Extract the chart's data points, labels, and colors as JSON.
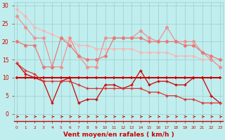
{
  "x": [
    0,
    1,
    2,
    3,
    4,
    5,
    6,
    7,
    8,
    9,
    10,
    11,
    12,
    13,
    14,
    15,
    16,
    17,
    18,
    19,
    20,
    21,
    22,
    23
  ],
  "line_lightest": [
    29,
    27,
    24,
    23,
    22,
    21,
    20,
    19,
    19,
    18,
    18,
    18,
    18,
    18,
    17,
    17,
    17,
    17,
    16,
    16,
    16,
    15,
    15,
    13
  ],
  "line_light": [
    27,
    24,
    21,
    21,
    13,
    13,
    21,
    16,
    13,
    13,
    21,
    21,
    21,
    21,
    23,
    21,
    20,
    24,
    20,
    20,
    20,
    17,
    15,
    13
  ],
  "line_med": [
    20,
    19,
    19,
    13,
    13,
    21,
    19,
    16,
    15,
    15,
    16,
    21,
    21,
    21,
    21,
    20,
    20,
    20,
    20,
    19,
    19,
    17,
    16,
    15
  ],
  "line_flat": [
    10,
    10,
    10,
    10,
    10,
    10,
    10,
    10,
    10,
    10,
    10,
    10,
    10,
    10,
    10,
    10,
    10,
    10,
    10,
    10,
    10,
    10,
    10,
    10
  ],
  "line_jagged": [
    14,
    11,
    10,
    9,
    3,
    9,
    10,
    3,
    4,
    4,
    8,
    8,
    7,
    8,
    12,
    8,
    9,
    9,
    8,
    8,
    10,
    10,
    5,
    3
  ],
  "line_decline": [
    14,
    12,
    11,
    9,
    9,
    9,
    9,
    8,
    7,
    7,
    7,
    7,
    7,
    7,
    7,
    6,
    6,
    5,
    5,
    4,
    4,
    3,
    3,
    3
  ],
  "color_lightest": "#f5b8b8",
  "color_light": "#f09090",
  "color_med": "#e87878",
  "color_flat": "#cc0000",
  "color_jagged": "#cc0000",
  "color_decline": "#dd3333",
  "bg_color": "#c0eeee",
  "grid_color": "#99cccc",
  "axis_color": "#cc0000",
  "xlabel": "Vent moyen/en rafales ( km/h )",
  "ylim": [
    0,
    31
  ],
  "xlim": [
    -0.3,
    23.3
  ]
}
